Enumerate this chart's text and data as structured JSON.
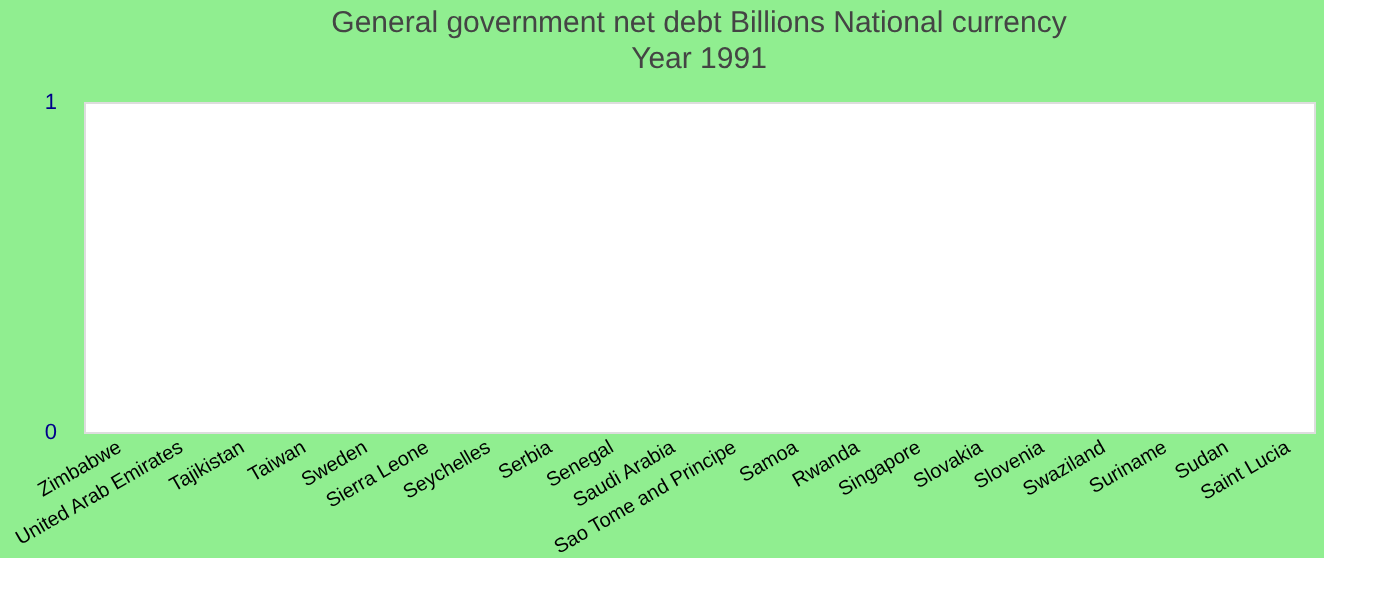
{
  "chart_data": {
    "type": "bar",
    "title": "General government net debt Billions National currency",
    "subtitle": "Year 1991",
    "categories": [
      "Zimbabwe",
      "United Arab Emirates",
      "Tajikistan",
      "Taiwan",
      "Sweden",
      "Sierra Leone",
      "Seychelles",
      "Serbia",
      "Senegal",
      "Saudi Arabia",
      "Sao Tome and Principe",
      "Samoa",
      "Rwanda",
      "Singapore",
      "Slovakia",
      "Slovenia",
      "Swaziland",
      "Suriname",
      "Sudan",
      "Saint Lucia"
    ],
    "values": [
      null,
      null,
      null,
      null,
      null,
      null,
      null,
      null,
      null,
      null,
      null,
      null,
      null,
      null,
      null,
      null,
      null,
      null,
      null,
      null
    ],
    "ylim": [
      0,
      1
    ],
    "yticks": [
      0,
      1
    ]
  }
}
